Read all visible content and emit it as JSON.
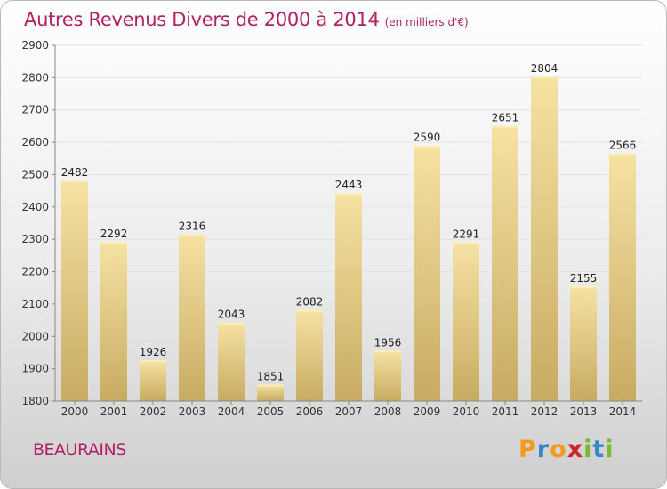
{
  "chart_data": {
    "type": "bar",
    "title": "Autres Revenus Divers de 2000 à 2014",
    "unit_note": "(en milliers d'€)",
    "categories": [
      "2000",
      "2001",
      "2002",
      "2003",
      "2004",
      "2005",
      "2006",
      "2007",
      "2008",
      "2009",
      "2010",
      "2011",
      "2012",
      "2013",
      "2014"
    ],
    "values": [
      2482,
      2292,
      1926,
      2316,
      2043,
      1851,
      2082,
      2443,
      1956,
      2590,
      2291,
      2651,
      2804,
      2155,
      2566
    ],
    "ylim": [
      1800,
      2900
    ],
    "yticks": [
      1800,
      1900,
      2000,
      2100,
      2200,
      2300,
      2400,
      2500,
      2600,
      2700,
      2800,
      2900
    ],
    "grid": true,
    "data_labels": true,
    "bar_color_light": "#f6e2a3",
    "bar_color_dark": "#c8ab62"
  },
  "footer": {
    "place": "BEAURAINS",
    "logo": {
      "letters": [
        "P",
        "r",
        "o",
        "x",
        "i",
        "t",
        "i"
      ],
      "colors": [
        "#f29b1d",
        "#3a87c8",
        "#f29b1d",
        "#d2232a",
        "#7cb82f",
        "#3a87c8",
        "#7cb82f"
      ]
    }
  }
}
